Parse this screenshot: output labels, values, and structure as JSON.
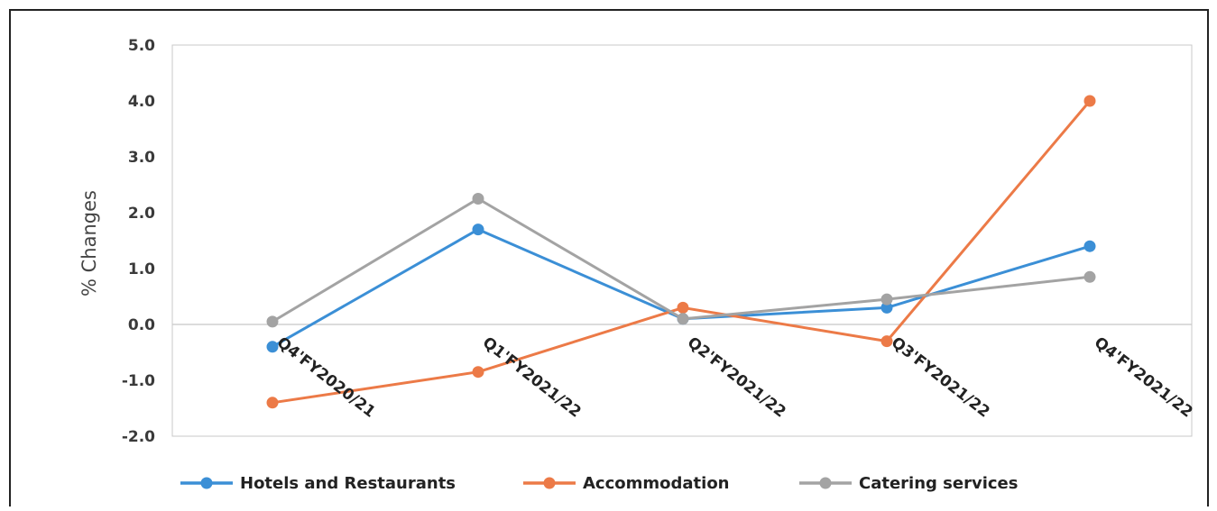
{
  "chart_data": {
    "type": "line",
    "title": "",
    "xlabel": "",
    "ylabel": "% Changes",
    "ylim": [
      -2.0,
      5.0
    ],
    "yticks": [
      "5.0",
      "4.0",
      "3.0",
      "2.0",
      "1.0",
      "0.0",
      "-1.0",
      "-2.0"
    ],
    "categories": [
      "Q4'FY2020/21",
      "Q1'FY2021/22",
      "Q2'FY2021/22",
      "Q3'FY2021/22",
      "Q4'FY2021/22"
    ],
    "grid": false,
    "legend_position": "bottom",
    "series": [
      {
        "name": "Hotels and Restaurants",
        "color": "#3b8fd6",
        "values": [
          -0.4,
          1.7,
          0.1,
          0.3,
          1.4
        ]
      },
      {
        "name": "Accommodation",
        "color": "#ec7a47",
        "values": [
          -1.4,
          -0.85,
          0.3,
          -0.3,
          4.0
        ]
      },
      {
        "name": "Catering services",
        "color": "#a3a3a3",
        "values": [
          0.05,
          2.25,
          0.1,
          0.45,
          0.85
        ]
      }
    ]
  }
}
